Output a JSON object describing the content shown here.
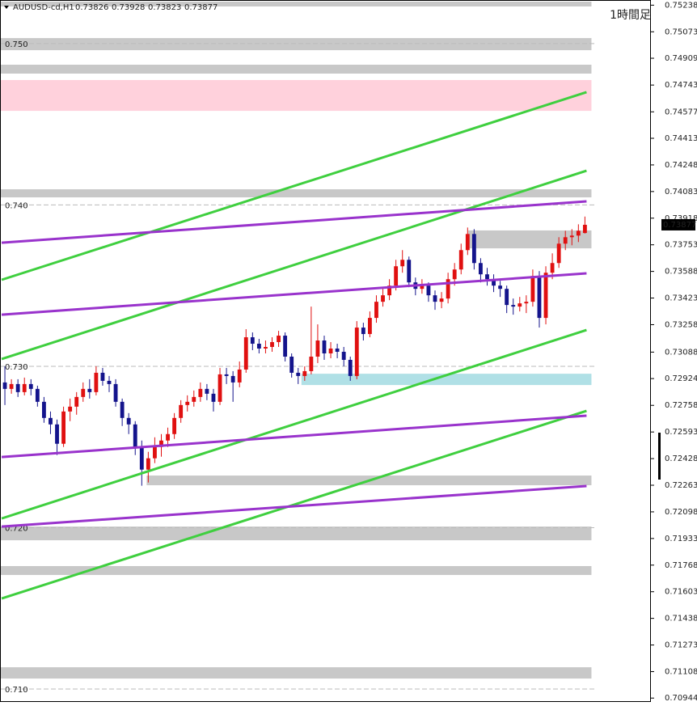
{
  "chart_data": {
    "type": "candlestick",
    "symbol": "AUDUSD-cd,H1",
    "timeframe": "1時間足",
    "up_color": "#e01010",
    "down_color": "#14148c",
    "xlim": [
      -0.75,
      99.125
    ],
    "ylim": [
      0.7093,
      0.7527
    ],
    "yticks": [
      0.75238,
      0.75073,
      0.74909,
      0.74743,
      0.74577,
      0.74413,
      0.74248,
      0.74083,
      0.73918,
      0.73753,
      0.73588,
      0.73423,
      0.73258,
      0.73088,
      0.72924,
      0.72758,
      0.72593,
      0.72428,
      0.72263,
      0.72098,
      0.71933,
      0.71768,
      0.71603,
      0.71438,
      0.71273,
      0.71108,
      0.70944
    ],
    "levels": [
      {
        "value": 0.75,
        "label": "0.750"
      },
      {
        "value": 0.74,
        "label": "0.740"
      },
      {
        "value": 0.73,
        "label": "0.730"
      },
      {
        "value": 0.72,
        "label": "0.720"
      },
      {
        "value": 0.71,
        "label": "0.710"
      }
    ],
    "zones": [
      {
        "top": 0.7526,
        "bottom": 0.7523,
        "x": [
          -0.75,
          90
        ],
        "color": "#c8c8c8"
      },
      {
        "top": 0.75034,
        "bottom": 0.74959,
        "x": [
          -0.75,
          90
        ],
        "color": "#c8c8c8"
      },
      {
        "top": 0.74869,
        "bottom": 0.74814,
        "x": [
          -0.75,
          90
        ],
        "color": "#c8c8c8"
      },
      {
        "top": 0.74774,
        "bottom": 0.74583,
        "x": [
          -0.75,
          90
        ],
        "color": "#ffd1dc"
      },
      {
        "top": 0.74097,
        "bottom": 0.74047,
        "x": [
          -0.75,
          90
        ],
        "color": "#c8c8c8"
      },
      {
        "top": 0.73842,
        "bottom": 0.73731,
        "x": [
          71.1,
          90
        ],
        "color": "#c8c8c8"
      },
      {
        "top": 0.72954,
        "bottom": 0.72884,
        "x": [
          45.5,
          90
        ],
        "color": "#b0e0e6"
      },
      {
        "top": 0.72323,
        "bottom": 0.72263,
        "x": [
          21.75,
          90
        ],
        "color": "#c8c8c8"
      },
      {
        "top": 0.72007,
        "bottom": 0.71922,
        "x": [
          -0.75,
          90
        ],
        "color": "#c8c8c8"
      },
      {
        "top": 0.71762,
        "bottom": 0.71707,
        "x": [
          -0.75,
          90
        ],
        "color": "#c8c8c8"
      },
      {
        "top": 0.71135,
        "bottom": 0.71065,
        "x": [
          -0.75,
          90
        ],
        "color": "#c8c8c8"
      }
    ],
    "trendlines": [
      {
        "x": [
          -0.5,
          89.25
        ],
        "y": [
          0.73536,
          0.74699
        ],
        "color": "#3fcf3f"
      },
      {
        "x": [
          -0.5,
          89.25
        ],
        "y": [
          0.73045,
          0.74212
        ],
        "color": "#3fcf3f"
      },
      {
        "x": [
          -0.5,
          89.25
        ],
        "y": [
          0.72057,
          0.73225
        ],
        "color": "#3fcf3f"
      },
      {
        "x": [
          -0.5,
          89.25
        ],
        "y": [
          0.71561,
          0.72724
        ],
        "color": "#3fcf3f"
      },
      {
        "x": [
          -0.5,
          89.25
        ],
        "y": [
          0.73766,
          0.74022
        ],
        "color": "#9933cc"
      },
      {
        "x": [
          -0.5,
          89.25
        ],
        "y": [
          0.7332,
          0.73576
        ],
        "color": "#9933cc"
      },
      {
        "x": [
          -0.5,
          89.25
        ],
        "y": [
          0.72438,
          0.72694
        ],
        "color": "#9933cc"
      },
      {
        "x": [
          -0.5,
          89.25
        ],
        "y": [
          0.72007,
          0.72258
        ],
        "color": "#9933cc"
      }
    ],
    "open": [
      0.729,
      0.7286,
      0.7289,
      0.7284,
      0.7289,
      0.7286,
      0.7278,
      0.7268,
      0.7264,
      0.7252,
      0.7272,
      0.7275,
      0.7281,
      0.7286,
      0.7284,
      0.7296,
      0.7291,
      0.7289,
      0.7278,
      0.7268,
      0.7264,
      0.725,
      0.7236,
      0.7243,
      0.725,
      0.7254,
      0.7258,
      0.7268,
      0.7276,
      0.7278,
      0.7281,
      0.7286,
      0.7283,
      0.7278,
      0.7295,
      0.7294,
      0.729,
      0.7298,
      0.7318,
      0.7314,
      0.7311,
      0.7312,
      0.7315,
      0.7319,
      0.7306,
      0.7296,
      0.7294,
      0.7297,
      0.7306,
      0.7316,
      0.7308,
      0.7311,
      0.7309,
      0.7304,
      0.7294,
      0.7324,
      0.732,
      0.733,
      0.734,
      0.7344,
      0.735,
      0.7362,
      0.7366,
      0.7352,
      0.7348,
      0.735,
      0.7344,
      0.734,
      0.7342,
      0.7354,
      0.736,
      0.7372,
      0.7382,
      0.7364,
      0.7357,
      0.7354,
      0.735,
      0.7348,
      0.7338,
      0.7337,
      0.7339,
      0.734,
      0.7356,
      0.733,
      0.7358,
      0.7364,
      0.7376,
      0.738,
      0.7381,
      0.73826
    ],
    "high": [
      0.73,
      0.7292,
      0.7292,
      0.7293,
      0.7292,
      0.7288,
      0.7281,
      0.7272,
      0.7267,
      0.7275,
      0.728,
      0.7284,
      0.729,
      0.7292,
      0.73,
      0.7299,
      0.7294,
      0.7292,
      0.728,
      0.7271,
      0.7266,
      0.7254,
      0.7247,
      0.7256,
      0.7258,
      0.7262,
      0.7271,
      0.7279,
      0.7282,
      0.7285,
      0.729,
      0.7289,
      0.7286,
      0.7299,
      0.7299,
      0.7297,
      0.7303,
      0.7323,
      0.7321,
      0.7317,
      0.7316,
      0.7318,
      0.7322,
      0.7321,
      0.7308,
      0.7299,
      0.73,
      0.7337,
      0.7326,
      0.7319,
      0.7315,
      0.7314,
      0.7312,
      0.7306,
      0.7328,
      0.7327,
      0.7334,
      0.7344,
      0.7348,
      0.7354,
      0.7366,
      0.7372,
      0.7368,
      0.7355,
      0.7354,
      0.7352,
      0.7347,
      0.7346,
      0.7358,
      0.7364,
      0.7376,
      0.7386,
      0.7385,
      0.7367,
      0.7361,
      0.7357,
      0.7353,
      0.735,
      0.7342,
      0.7343,
      0.7344,
      0.736,
      0.7359,
      0.7362,
      0.737,
      0.738,
      0.7384,
      0.7385,
      0.7388,
      0.73928
    ],
    "low": [
      0.7276,
      0.7283,
      0.7281,
      0.7282,
      0.7282,
      0.7275,
      0.7265,
      0.7258,
      0.7245,
      0.725,
      0.7266,
      0.727,
      0.7278,
      0.728,
      0.7282,
      0.7288,
      0.7284,
      0.7275,
      0.7263,
      0.7258,
      0.7245,
      0.7226,
      0.7228,
      0.724,
      0.7244,
      0.725,
      0.7255,
      0.7265,
      0.7272,
      0.7275,
      0.7278,
      0.7279,
      0.7272,
      0.7276,
      0.7289,
      0.7278,
      0.7287,
      0.7296,
      0.731,
      0.7308,
      0.7308,
      0.7309,
      0.7312,
      0.7303,
      0.7293,
      0.7289,
      0.7291,
      0.7295,
      0.7302,
      0.7304,
      0.7305,
      0.7305,
      0.73,
      0.7291,
      0.7292,
      0.7316,
      0.7318,
      0.7327,
      0.7337,
      0.7341,
      0.7347,
      0.7358,
      0.7349,
      0.7344,
      0.7345,
      0.734,
      0.7335,
      0.7336,
      0.7339,
      0.735,
      0.7357,
      0.7369,
      0.736,
      0.7352,
      0.735,
      0.7346,
      0.7343,
      0.7333,
      0.7332,
      0.7334,
      0.7333,
      0.7337,
      0.7324,
      0.7326,
      0.7354,
      0.7361,
      0.7372,
      0.7375,
      0.7377,
      0.73823
    ],
    "close": [
      0.7286,
      0.7289,
      0.7284,
      0.7289,
      0.7286,
      0.7278,
      0.7268,
      0.7264,
      0.7252,
      0.7272,
      0.7275,
      0.7281,
      0.7286,
      0.7284,
      0.7296,
      0.7291,
      0.7289,
      0.7278,
      0.7268,
      0.7264,
      0.725,
      0.7236,
      0.7243,
      0.725,
      0.7254,
      0.7258,
      0.7268,
      0.7276,
      0.7278,
      0.7281,
      0.7286,
      0.7283,
      0.7278,
      0.7295,
      0.7294,
      0.729,
      0.7298,
      0.7318,
      0.7314,
      0.7311,
      0.7312,
      0.7315,
      0.7319,
      0.7306,
      0.7296,
      0.7294,
      0.7297,
      0.7306,
      0.7316,
      0.7308,
      0.7311,
      0.7309,
      0.7304,
      0.7294,
      0.7324,
      0.732,
      0.733,
      0.734,
      0.7344,
      0.735,
      0.7362,
      0.7366,
      0.7352,
      0.7348,
      0.735,
      0.7344,
      0.734,
      0.7342,
      0.7354,
      0.736,
      0.7372,
      0.7382,
      0.7364,
      0.7357,
      0.7354,
      0.735,
      0.7348,
      0.7338,
      0.7337,
      0.7339,
      0.734,
      0.7356,
      0.733,
      0.7358,
      0.7364,
      0.7376,
      0.738,
      0.7381,
      0.7384,
      0.73877
    ]
  }
}
